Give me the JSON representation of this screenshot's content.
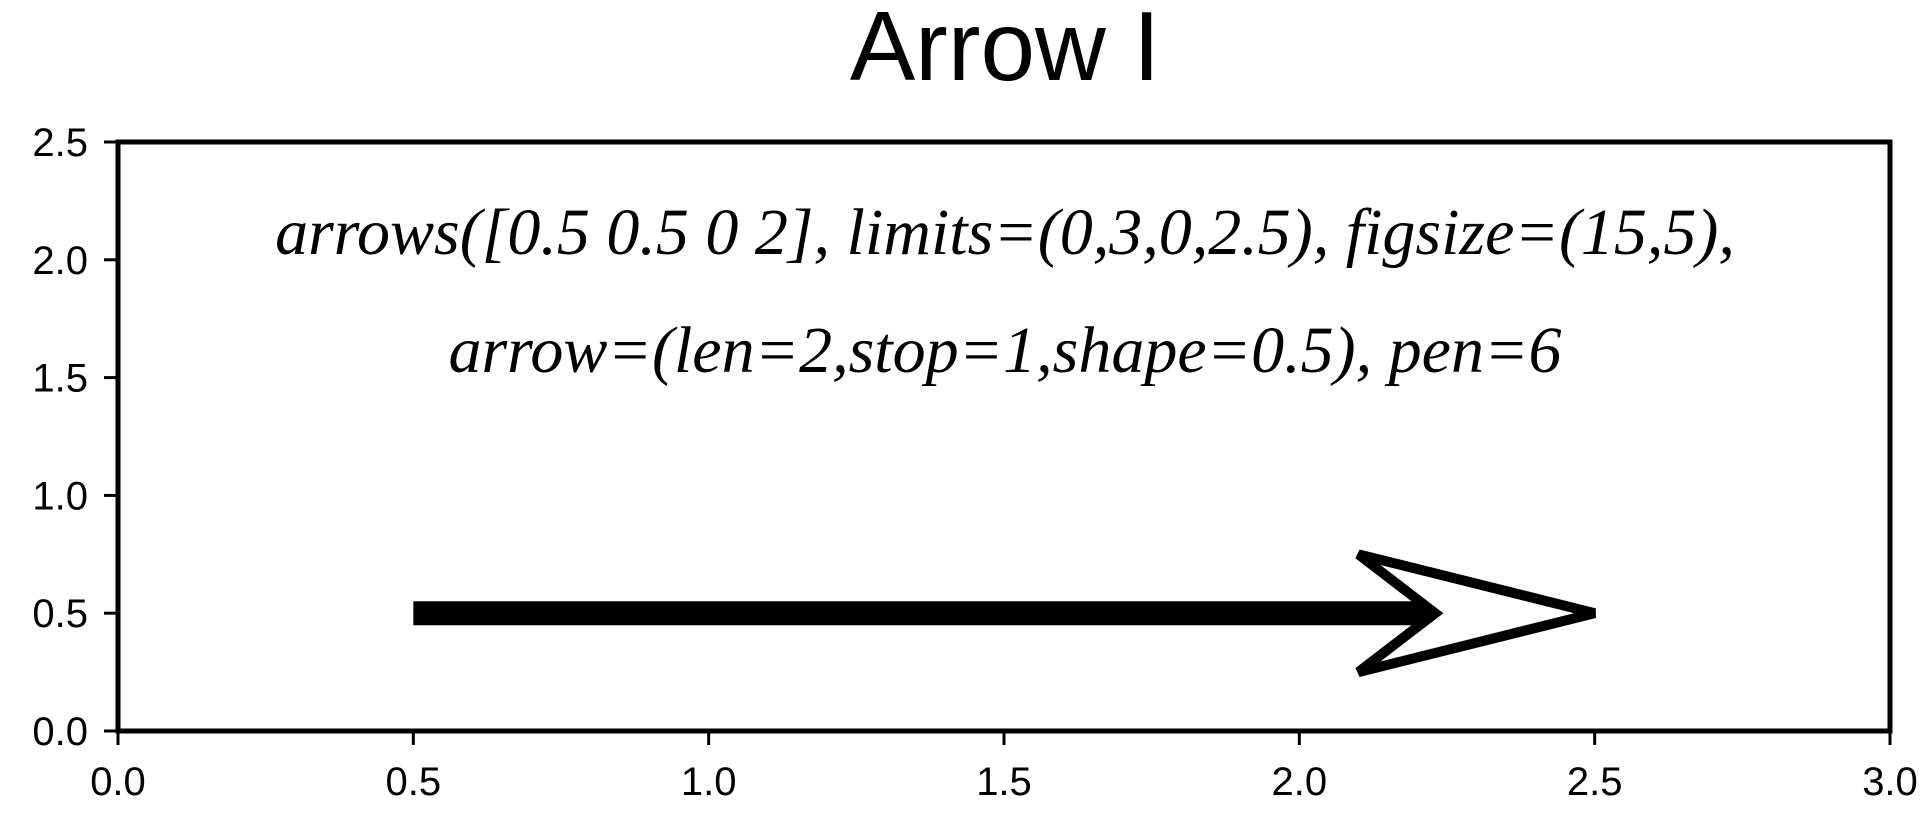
{
  "chart_data": {
    "type": "arrow",
    "title": "Arrow I",
    "xlabel": "",
    "ylabel": "",
    "xlim": [
      0,
      3
    ],
    "ylim": [
      0,
      2.5
    ],
    "x_ticks": [
      "0.0",
      "0.5",
      "1.0",
      "1.5",
      "2.0",
      "2.5",
      "3.0"
    ],
    "y_ticks": [
      "0.0",
      "0.5",
      "1.0",
      "1.5",
      "2.0",
      "2.5"
    ],
    "grid": false,
    "annotations": [
      "arrows([0.5 0.5 0 2], limits=(0,3,0,2.5), figsize=(15,5),",
      "arrow=(len=2,stop=1,shape=0.5), pen=6"
    ],
    "arrow": {
      "x0": 0.5,
      "y0": 0.5,
      "x1": 2.5,
      "y1": 0.5,
      "head_start_x": 2.1,
      "head_back_x": 2.23,
      "head_half_height": 0.25,
      "shaft_color": "#000000",
      "head_fill": "#ffffff",
      "head_outline": "#000000"
    }
  }
}
